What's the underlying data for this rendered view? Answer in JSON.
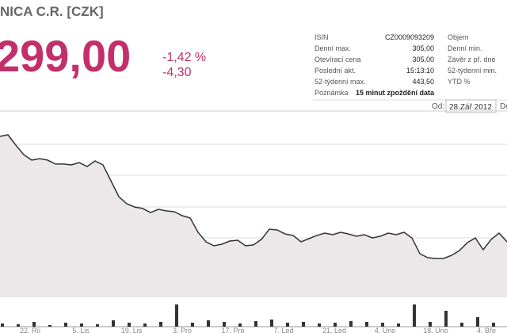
{
  "header": {
    "title": "NICA C.R. [CZK]",
    "price": "299,00",
    "change_pct": "-1,42 %",
    "change_abs": "-4,30"
  },
  "info": {
    "rows": [
      [
        "ISIN",
        "CZ0009093209"
      ],
      [
        "Denní max.",
        "305,00"
      ],
      [
        "Otevírací cena",
        "305,00"
      ],
      [
        "Poslední akt.",
        "15:13:10"
      ],
      [
        "52-týdenní max.",
        "443,50"
      ],
      [
        "Poznámka",
        "15 minut zpoždění data"
      ]
    ],
    "right_labels": [
      "Objem",
      "Denní min.",
      "Závěr z př. dne",
      "52-týdenní min.",
      "YTD %"
    ]
  },
  "range": {
    "from_label": "Od:",
    "from_value": "28.Zář 2012",
    "to_label": "Do"
  },
  "chart_data": {
    "type": "line",
    "values": [
      379.5,
      380.8,
      372.4,
      364.7,
      360.3,
      361.5,
      360.3,
      357.1,
      357.1,
      356.4,
      358.3,
      355.1,
      359.6,
      356.4,
      343.6,
      330.8,
      325.0,
      322.4,
      321.2,
      317.9,
      320.5,
      319.2,
      318.6,
      315.4,
      313.5,
      301.9,
      294.2,
      291.0,
      292.3,
      294.9,
      295.5,
      291.0,
      291.7,
      296.2,
      304.5,
      303.8,
      300.6,
      299.4,
      294.2,
      296.8,
      299.4,
      301.3,
      300.0,
      301.9,
      300.6,
      298.7,
      300.0,
      297.4,
      298.7,
      301.3,
      300.0,
      301.9,
      297.4,
      284.6,
      281.4,
      280.8,
      280.8,
      283.3,
      287.2,
      293.6,
      297.4,
      287.8,
      296.2,
      301.3,
      294.2
    ],
    "ylim": [
      250,
      400
    ],
    "color": "#333333",
    "fill": "#ece7e9",
    "grid": true,
    "volume": {
      "values": [
        4,
        3,
        6,
        2,
        5,
        4,
        3,
        8,
        5,
        4,
        6,
        28,
        5,
        8,
        6,
        4,
        7,
        9,
        5,
        6,
        4,
        5,
        7,
        6,
        5,
        4,
        28,
        6,
        20,
        5,
        12,
        5
      ],
      "ylim": [
        0,
        30
      ],
      "color": "#333333"
    },
    "xtick_labels": [
      "22. Říj",
      "5. Lis",
      "19. Lis",
      "3. Pro",
      "17. Pro",
      "7. Led",
      "21. Led",
      "4. Úno",
      "18. Úno",
      "4. Bře"
    ]
  }
}
